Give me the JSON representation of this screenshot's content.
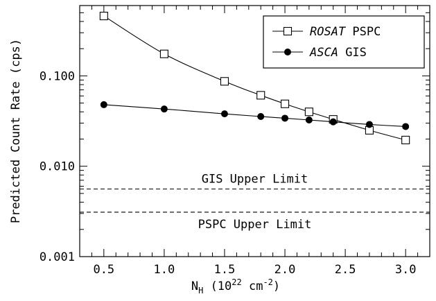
{
  "chart_data": {
    "type": "line",
    "xlabel": "N_H (10^22 cm^-2)",
    "ylabel": "Predicted Count Rate (cps)",
    "xlim": [
      0.3,
      3.2
    ],
    "ylim": [
      0.001,
      0.6
    ],
    "yscale": "log",
    "grid": false,
    "legend_position": "top-right",
    "xticks": [
      0.5,
      1.0,
      1.5,
      2.0,
      2.5,
      3.0
    ],
    "xtick_labels": [
      "0.5",
      "1.0",
      "1.5",
      "2.0",
      "2.5",
      "3.0"
    ],
    "yticks": [
      0.001,
      0.01,
      0.1
    ],
    "ytick_labels": [
      "0.001",
      "0.010",
      "0.100"
    ],
    "series": [
      {
        "name": "ROSAT PSPC",
        "name_italic": "ROSAT",
        "name_rest": " PSPC",
        "marker": "open-square",
        "x": [
          0.5,
          1.0,
          1.5,
          1.8,
          2.0,
          2.2,
          2.4,
          2.7,
          3.0
        ],
        "y": [
          0.46,
          0.175,
          0.087,
          0.061,
          0.049,
          0.04,
          0.033,
          0.025,
          0.0195
        ]
      },
      {
        "name": "ASCA GIS",
        "name_italic": "ASCA",
        "name_rest": " GIS",
        "marker": "filled-circle",
        "x": [
          0.5,
          1.0,
          1.5,
          1.8,
          2.0,
          2.2,
          2.4,
          2.7,
          3.0
        ],
        "y": [
          0.048,
          0.043,
          0.038,
          0.0355,
          0.034,
          0.0325,
          0.031,
          0.029,
          0.0275
        ]
      }
    ],
    "reference_lines": [
      {
        "label": "GIS Upper Limit",
        "y": 0.0056,
        "style": "dashed",
        "label_side": "above"
      },
      {
        "label": "PSPC Upper Limit",
        "y": 0.0031,
        "style": "dashed",
        "label_side": "below"
      }
    ]
  }
}
